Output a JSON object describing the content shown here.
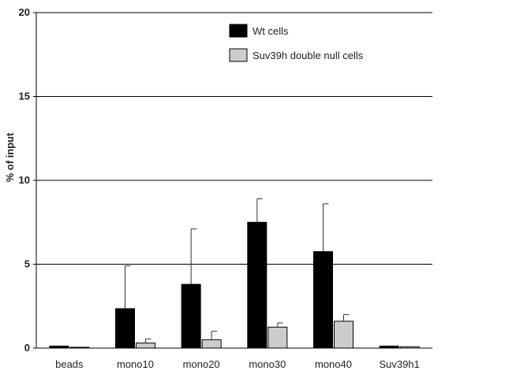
{
  "chart_data": {
    "type": "bar",
    "title": "",
    "xlabel": "",
    "ylabel": "% of input",
    "ylim": [
      0,
      20
    ],
    "yticks": [
      0,
      5,
      10,
      15,
      20
    ],
    "grid": true,
    "legend": "top-right",
    "categories": [
      "beads",
      "mono10",
      "mono20",
      "mono30",
      "mono40",
      "Suv39h1"
    ],
    "series": [
      {
        "name": "Wt cells",
        "color": "#000000",
        "values": [
          0.12,
          2.35,
          3.8,
          7.5,
          5.75,
          0.12
        ],
        "errors": [
          0.0,
          2.55,
          3.3,
          1.4,
          2.85,
          0.0
        ]
      },
      {
        "name": "Suv39h double null cells",
        "color": "#cccccc",
        "values": [
          0.05,
          0.3,
          0.5,
          1.25,
          1.6,
          0.08
        ],
        "errors": [
          0.0,
          0.25,
          0.5,
          0.25,
          0.4,
          0.0
        ]
      }
    ]
  }
}
